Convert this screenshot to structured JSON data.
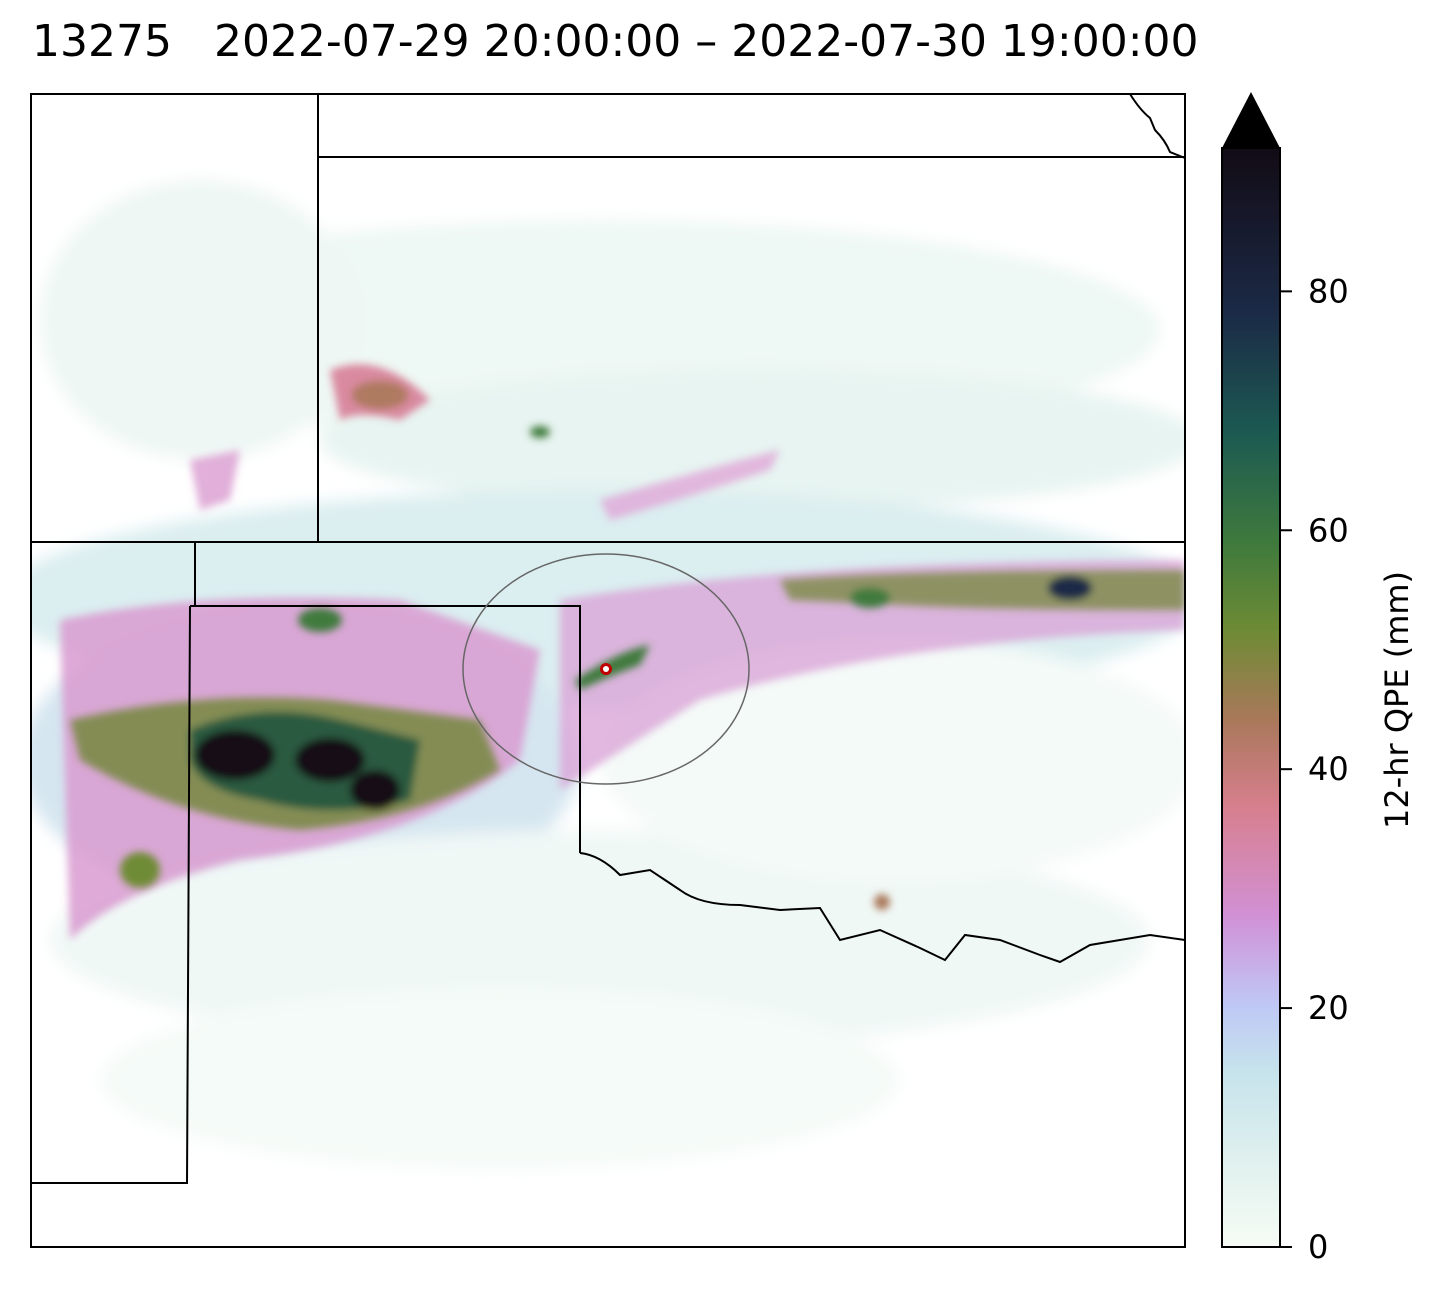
{
  "title": {
    "id": "13275",
    "period": "2022-07-29 20:00:00 – 2022-07-30 19:00:00"
  },
  "colorbar": {
    "label": "12-hr QPE (mm)",
    "ticks": [
      "0",
      "20",
      "40",
      "60",
      "80"
    ],
    "range": [
      0,
      92
    ],
    "extend": "max",
    "colormap": "cubehelix_r",
    "colors": [
      "#f7fcf5",
      "#c6e7ea",
      "#bfc8f5",
      "#d191d6",
      "#d77f8e",
      "#a9785a",
      "#6e8b35",
      "#3f7a3c",
      "#1c5a52",
      "#1b2a46",
      "#120b15"
    ]
  },
  "map": {
    "markers": [
      {
        "name": "center-point",
        "color": "#ffffff",
        "ring_color": "#c00000"
      }
    ],
    "search_radius_circle": {
      "color": "#666666"
    }
  }
}
